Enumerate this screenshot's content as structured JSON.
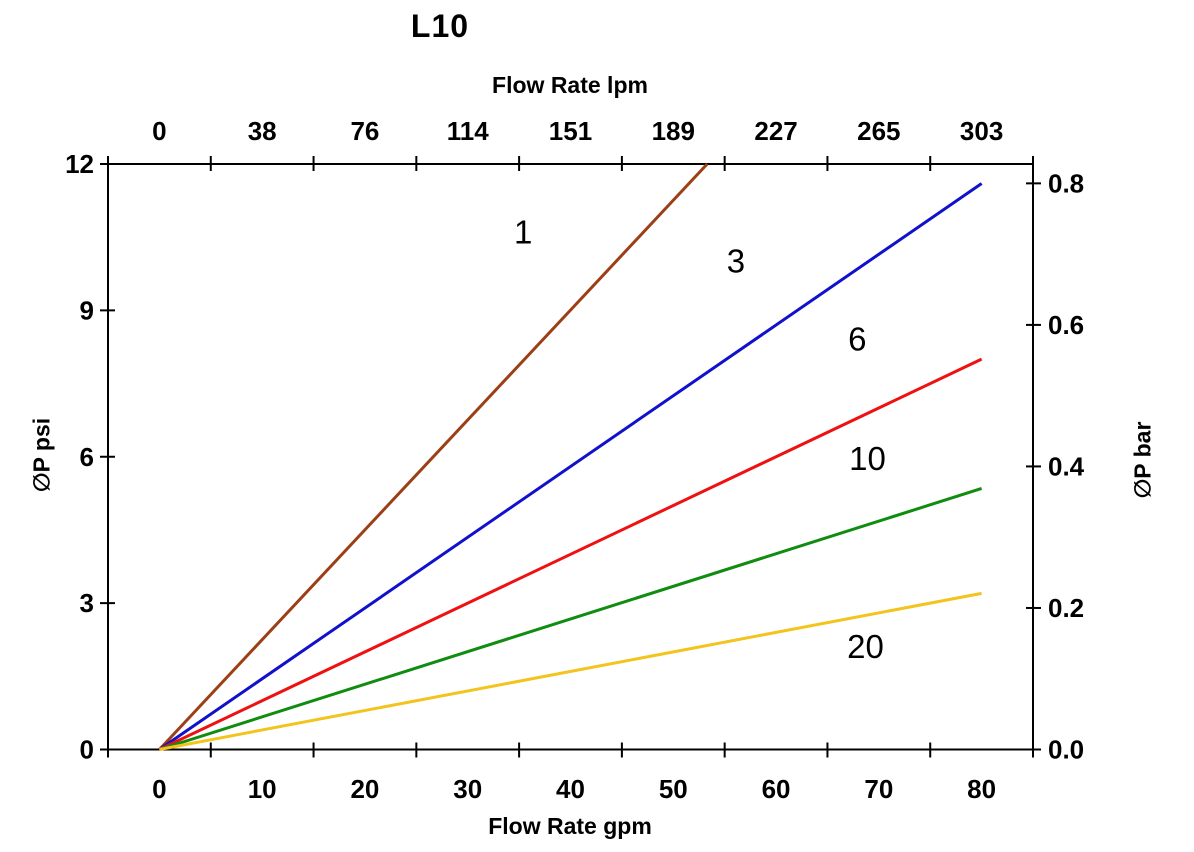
{
  "chart_data": {
    "type": "line",
    "title": "L10",
    "axes": {
      "top": {
        "label": "Flow Rate lpm",
        "tick_labels": [
          "0",
          "38",
          "76",
          "114",
          "151",
          "189",
          "227",
          "265",
          "303"
        ],
        "tick_label_positions_gpm": [
          0,
          10,
          20,
          30,
          40,
          50,
          60,
          70,
          80
        ]
      },
      "bottom": {
        "label": "Flow Rate gpm",
        "tick_labels": [
          "0",
          "10",
          "20",
          "30",
          "40",
          "50",
          "60",
          "70",
          "80"
        ],
        "tick_label_positions_gpm": [
          0,
          10,
          20,
          30,
          40,
          50,
          60,
          70,
          80
        ],
        "tick_mark_positions_gpm": [
          -5,
          5,
          15,
          25,
          35,
          45,
          55,
          65,
          75,
          85
        ]
      },
      "left": {
        "label": "∅P psi",
        "tick_labels": [
          "0",
          "3",
          "6",
          "9",
          "12"
        ],
        "tick_values_psi": [
          0,
          3,
          6,
          9,
          12
        ],
        "range_psi": [
          0,
          12
        ]
      },
      "right": {
        "label": "∅P bar",
        "tick_labels": [
          "0.0",
          "0.2",
          "0.4",
          "0.6",
          "0.8"
        ],
        "tick_values_bar": [
          0.0,
          0.2,
          0.4,
          0.6,
          0.8
        ]
      }
    },
    "x_range_gpm": [
      -5,
      85
    ],
    "psi_per_bar": 14.5038,
    "grid": "off",
    "legend": "inline-labels",
    "series": [
      {
        "label": "1",
        "color": "#9C3F16",
        "points_gpm_psi": [
          [
            0,
            0
          ],
          [
            53.3,
            12.0
          ]
        ],
        "label_pos_gpm_psi": [
          35.4,
          10.6
        ]
      },
      {
        "label": "3",
        "color": "#1111CC",
        "points_gpm_psi": [
          [
            0,
            0
          ],
          [
            80.0,
            11.6
          ]
        ],
        "label_pos_gpm_psi": [
          56.1,
          10.0
        ]
      },
      {
        "label": "6",
        "color": "#EE1111",
        "points_gpm_psi": [
          [
            0,
            0
          ],
          [
            80.0,
            8.0
          ]
        ],
        "label_pos_gpm_psi": [
          67.9,
          8.4
        ]
      },
      {
        "label": "10",
        "color": "#108C10",
        "points_gpm_psi": [
          [
            0,
            0
          ],
          [
            80.0,
            5.35
          ]
        ],
        "label_pos_gpm_psi": [
          68.9,
          5.95
        ]
      },
      {
        "label": "20",
        "color": "#F2C41D",
        "points_gpm_psi": [
          [
            0,
            0
          ],
          [
            80.0,
            3.2
          ]
        ],
        "label_pos_gpm_psi": [
          68.7,
          2.1
        ]
      }
    ]
  }
}
